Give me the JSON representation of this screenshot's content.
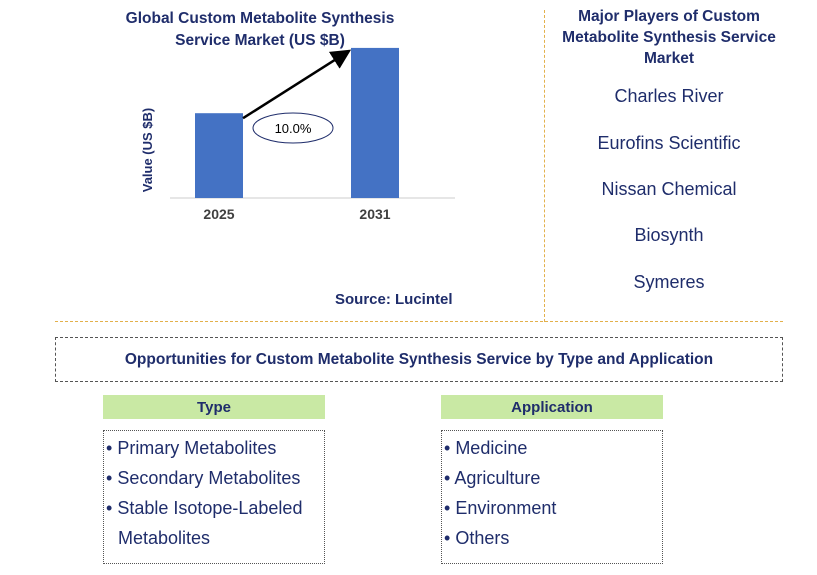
{
  "chart_data": {
    "type": "bar",
    "title": "Global Custom Metabolite Synthesis Service Market (US $B)",
    "xlabel": "",
    "ylabel": "Value (US $B)",
    "categories": [
      "2025",
      "2031"
    ],
    "values": [
      1.0,
      1.77
    ],
    "ylim": [
      0,
      2.5
    ],
    "bar_color": "#4472c4",
    "annotation": {
      "label": "10.0%",
      "type": "CAGR arrow",
      "from": "2025",
      "to": "2031"
    }
  },
  "source": "Source: Lucintel",
  "players": {
    "title": "Major Players of Custom Metabolite Synthesis Service Market",
    "items": [
      "Charles River",
      "Eurofins Scientific",
      "Nissan Chemical",
      "Biosynth",
      "Symeres"
    ]
  },
  "opportunities": {
    "title": "Opportunities for Custom Metabolite Synthesis Service by Type and Application"
  },
  "type_section": {
    "header": "Type",
    "items": [
      "Primary Metabolites",
      "Secondary Metabolites",
      "Stable Isotope-Labeled"
    ],
    "items_cont": "Metabolites"
  },
  "application_section": {
    "header": "Application",
    "items": [
      "Medicine",
      "Agriculture",
      "Environment",
      "Others"
    ]
  },
  "colors": {
    "text": "#1f2d6b",
    "bar": "#4472c4",
    "header_bg": "#c9e9a4",
    "separator": "#e3b04b"
  }
}
